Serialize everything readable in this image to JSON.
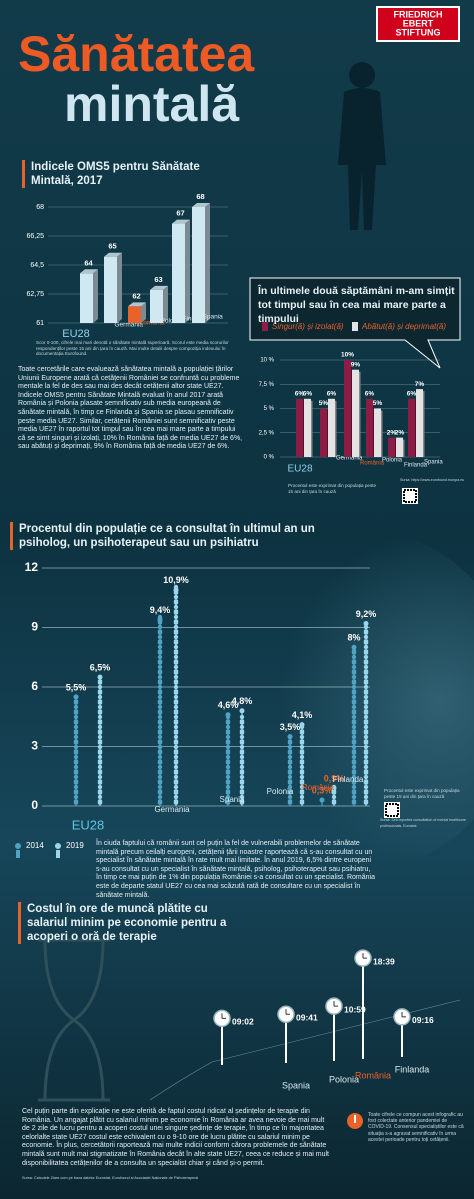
{
  "header": {
    "logo": [
      "FRIEDRICH",
      "EBERT",
      "STIFTUNG"
    ],
    "title": [
      "Sănătatea",
      "mintală"
    ]
  },
  "chart_data": [
    {
      "type": "bar3d",
      "title": "Indicele OMS5 pentru Sănătate Mintală, 2017",
      "categories": [
        "EU28",
        "Germania",
        "România",
        "Polonia",
        "Finlanda",
        "Spania"
      ],
      "values": [
        64,
        65,
        62,
        63,
        67,
        68
      ],
      "color": "#cfe8f1",
      "ylim": [
        61,
        68
      ],
      "yticks": [
        61,
        {
          "value": 62.75,
          "label": "62,75"
        },
        {
          "value": 64.5,
          "label": "64,5"
        },
        {
          "value": 66.25,
          "label": "66,25"
        },
        68
      ],
      "note": "Scor 0-100, cifrele mai mari denotă o sănătate mintală superioară. Scorul este media scorurilor respondenților peste 15 ani din țara în cauză. Mai multe detalii despre compoziția indexului în documentația Eurofound."
    },
    {
      "type": "groupedbar",
      "title": "În ultimele două săptămâni m-am simțit tot timpul sau în cea mai mare parte a timpului",
      "categories": [
        "EU28",
        "Germania",
        "România",
        "Polonia",
        "Finlanda",
        "Spania"
      ],
      "series": [
        {
          "name": "Singur(ă) și izolat(ă)",
          "color": "#8e1d45",
          "values": [
            6,
            5,
            10,
            6,
            2,
            6
          ],
          "value_labels": [
            "6%",
            "5%",
            "10%",
            "6%",
            "2%",
            "6%"
          ]
        },
        {
          "name": "Abătut(ă) și deprimat(ă)",
          "color": "#e3e3e3",
          "values": [
            6,
            6,
            9,
            5,
            2,
            7
          ],
          "value_labels": [
            "6%",
            "6%",
            "9%",
            "5%",
            "2%",
            "7%"
          ]
        }
      ],
      "ylim": [
        0,
        10
      ],
      "yticks": [
        {
          "value": 0,
          "label": "0 %"
        },
        {
          "value": 2.5,
          "label": "2,5 %"
        },
        {
          "value": 5,
          "label": "5 %"
        },
        {
          "value": 7.5,
          "label": "7,5 %"
        },
        {
          "value": 10,
          "label": "10 %"
        }
      ],
      "note": "Procentul este exprimat din populația peste 15 ani din țara în cauză",
      "source": "Sursa: https://www.eurofound.europa.eu"
    },
    {
      "type": "pictogram",
      "title": "Procentul din populație ce a consultat în ultimul an un psiholog, un psihoterapeut sau un psihiatru",
      "categories": [
        "EU28",
        "Germania",
        "Spania",
        "Polonia",
        "România",
        "Finlanda"
      ],
      "series": [
        {
          "name": "2014",
          "color": "#4fa3c4",
          "values": [
            5.5,
            9.4,
            4.6,
            3.5,
            0.3,
            8
          ],
          "value_labels": [
            "5,5%",
            "9,4%",
            "4,6%",
            "3,5%",
            "0,3%",
            "8%"
          ]
        },
        {
          "name": "2019",
          "color": "#9ad6ec",
          "values": [
            6.5,
            10.9,
            4.8,
            4.1,
            0.9,
            9.2
          ],
          "value_labels": [
            "6,5%",
            "10,9%",
            "4,8%",
            "4,1%",
            "0,9%",
            "9,2%"
          ]
        }
      ],
      "ylim": [
        0,
        12
      ],
      "yticks": [
        0,
        3,
        6,
        9,
        12
      ],
      "note": "Procentul este exprimat din populația peste 15 ani din țara în cauză",
      "source": "Sursa: Self-reported consultation of mental healthcare professionals, Eurostat"
    },
    {
      "type": "clock",
      "title": "Costul în ore de muncă plătite cu salariul minim pe economie pentru a acoperi o oră de terapie",
      "categories": [
        null,
        "Spania",
        "Polonia",
        "România",
        "Finlanda"
      ],
      "values": [
        9.0333,
        9.6833,
        10.9833,
        18.65,
        9.2667
      ],
      "value_labels": [
        "09:02",
        "09:41",
        "10:59",
        "18:39",
        "09:16"
      ],
      "color": "#ffffff"
    }
  ],
  "paragraphs": [
    "Toate cercetările care evaluează sănătatea mintală a populației țărilor Uniunii Europene arată că cetățenii României se confruntă cu probleme mentale la fel de des sau mai des decât cetățenii altor state UE27. Indicele OMS5 pentru Sănătate Mintală evaluat în anul 2017 arată România și Polonia plasate semnificativ sub media europeană de sănătate mintală, în timp ce Finlanda și Spania se plasau semnificativ peste media UE27. Similar, cetățenii României sunt semnificativ peste media UE27 în raportul tot timpul sau în cea mai mare parte a timpului că se simt singuri și izolați, 10% în România față de media UE27 de 6%, sau abătuți și deprimați, 9% în România față de media UE27 de 6%.",
    "În ciuda faptului că românii sunt cel puțin la fel de vulnerabili problemelor de sănătate mintală precum ceilalți europeni, cetățenii țării noastre raportează că s-au consultat cu un specialist în sănătate mintală în rate mult mai limitate. În anul 2019, 6,5% dintre europeni s-au consultat cu un specialist în sănătate mintală, psiholog, psihoterapeut sau psihiatru, în timp ce mai puțin de 1% din populația României s-a consultat cu un specialist. România este de departe statul UE27 cu cea mai scăzută rată de consultare cu un specialist în sănătate mintală.",
    "Cel puțin parte din explicație ne este oferită de faptul costul ridicat al ședințelor de terapie din România. Un angajat plătit cu salariul minim pe economie în România ar avea nevoie de mai mult de 2 zile de lucru pentru a acoperi costul unei singure ședințe de terapie, în timp ce în majoritatea celorlalte state UE27 costul este echivalent cu o 9-10 ore de lucru plătite cu salariul minim pe economie. În plus, cercetătorii raportează mai multe indicii conform cărora problemele de sănătate mintală sunt mult mai stigmatizate în România decât în alte state UE27, ceea ce reduce și mai mult disponibilitatea cetățenilor de a consulta un specialist chiar și când și-o permit."
  ],
  "note": "Toate cifrele ce compun acest infografic au fost colectate anterior pandemiei de COVID-19. Consensul specialiștilor este că situația s-a agravat semnificativ în urma acestei perioade pentru toți cetățenii.",
  "source": "Sursa: Calculele Ziare.com pe baza datelor Eurostat, Eurofound și Asociației Naționale de Psihoterapeuți"
}
